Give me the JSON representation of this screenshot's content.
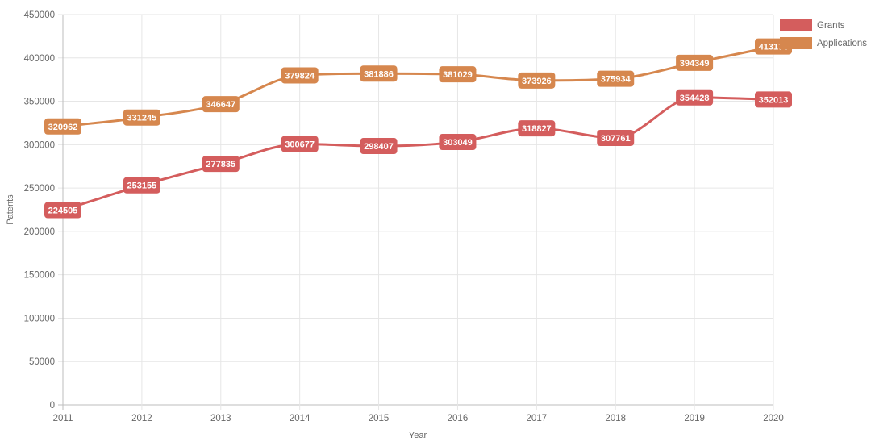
{
  "chart_data": {
    "type": "line",
    "categories": [
      "2011",
      "2012",
      "2013",
      "2014",
      "2015",
      "2016",
      "2017",
      "2018",
      "2019",
      "2020"
    ],
    "series": [
      {
        "name": "Grants",
        "color": "#d45d5d",
        "values": [
          224505,
          253155,
          277835,
          300677,
          298407,
          303049,
          318827,
          307761,
          354428,
          352013
        ]
      },
      {
        "name": "Applications",
        "color": "#d6874e",
        "values": [
          320962,
          331245,
          346647,
          379824,
          381886,
          381029,
          373926,
          375934,
          394349,
          413176
        ]
      }
    ],
    "xlabel": "Year",
    "ylabel": "Patents",
    "ylim": [
      0,
      450000
    ],
    "yticks": [
      0,
      50000,
      100000,
      150000,
      200000,
      250000,
      300000,
      350000,
      400000,
      450000
    ],
    "grid": true,
    "legend_position": "top-right",
    "data_labels": true
  }
}
